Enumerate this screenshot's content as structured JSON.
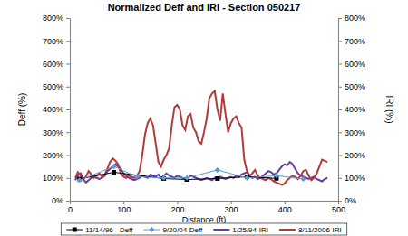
{
  "chart_data": {
    "type": "line",
    "title": "Normalized Deff and IRI - Section 050217",
    "x_label": "Distance (ft)",
    "y_label": "Deff (%)",
    "y2_label": "IRI (%)",
    "xlim": [
      0,
      500
    ],
    "xticks": [
      0,
      100,
      200,
      300,
      400,
      500
    ],
    "ylim": [
      0,
      800
    ],
    "yticks": [
      {
        "value": 0,
        "label": "0%"
      },
      {
        "value": 100,
        "label": "100%"
      },
      {
        "value": 200,
        "label": "200%"
      },
      {
        "value": 300,
        "label": "300%"
      },
      {
        "value": 400,
        "label": "400%"
      },
      {
        "value": 500,
        "label": "500%"
      },
      {
        "value": 600,
        "label": "600%"
      },
      {
        "value": 700,
        "label": "700%"
      },
      {
        "value": 800,
        "label": "800%"
      }
    ],
    "y2lim": [
      0,
      800
    ],
    "y2ticks": [
      {
        "value": 0,
        "label": "0%"
      },
      {
        "value": 100,
        "label": "100%"
      },
      {
        "value": 200,
        "label": "200%"
      },
      {
        "value": 300,
        "label": "300%"
      },
      {
        "value": 400,
        "label": "400%"
      },
      {
        "value": 500,
        "label": "500%"
      },
      {
        "value": 600,
        "label": "600%"
      },
      {
        "value": 700,
        "label": "700%"
      },
      {
        "value": 800,
        "label": "800%"
      }
    ],
    "grid": false,
    "legend": "bottom",
    "series": [
      {
        "name": "11/14/96 - Deff",
        "color": "#000000",
        "marker": "square",
        "line_style": "solid",
        "axis": "y",
        "x": [
          18,
          82,
          175,
          218,
          275,
          330,
          385
        ],
        "values": [
          95,
          125,
          97,
          93,
          97,
          105,
          98
        ]
      },
      {
        "name": "9/20/04-Deff",
        "color": "#5b9bd5",
        "marker": "diamond",
        "line_style": "solid",
        "axis": "y",
        "x": [
          18,
          82,
          125,
          175,
          218,
          275,
          330,
          385,
          435
        ],
        "values": [
          90,
          150,
          105,
          100,
          100,
          135,
          100,
          110,
          95
        ]
      },
      {
        "name": "1/25/94-IRI",
        "color": "#6a3aa0",
        "marker": "none",
        "line_style": "solid",
        "axis": "y2",
        "x": [
          10,
          15,
          20,
          25,
          30,
          35,
          40,
          45,
          50,
          55,
          60,
          65,
          70,
          75,
          80,
          85,
          90,
          95,
          100,
          105,
          110,
          115,
          120,
          125,
          130,
          135,
          140,
          145,
          150,
          155,
          160,
          165,
          170,
          175,
          180,
          185,
          190,
          195,
          200,
          205,
          210,
          215,
          220,
          225,
          230,
          235,
          240,
          245,
          250,
          255,
          260,
          265,
          270,
          275,
          280,
          285,
          290,
          295,
          300,
          305,
          310,
          315,
          320,
          325,
          330,
          335,
          340,
          345,
          350,
          355,
          360,
          365,
          370,
          375,
          380,
          385,
          390,
          395,
          400,
          405,
          410,
          415,
          420,
          425,
          430,
          435,
          440,
          445,
          450,
          455,
          460,
          465,
          470,
          475,
          480
        ],
        "values": [
          90,
          110,
          120,
          95,
          80,
          90,
          100,
          105,
          100,
          95,
          100,
          110,
          130,
          140,
          150,
          160,
          150,
          140,
          120,
          110,
          100,
          95,
          90,
          95,
          100,
          110,
          105,
          100,
          115,
          110,
          105,
          115,
          100,
          110,
          120,
          110,
          105,
          100,
          110,
          105,
          100,
          95,
          100,
          110,
          105,
          100,
          95,
          90,
          95,
          100,
          95,
          90,
          100,
          95,
          105,
          100,
          95,
          100,
          105,
          100,
          110,
          105,
          115,
          120,
          125,
          110,
          100,
          105,
          95,
          100,
          110,
          120,
          130,
          125,
          115,
          120,
          135,
          150,
          160,
          155,
          170,
          160,
          140,
          120,
          110,
          105,
          100,
          95,
          100,
          105,
          95,
          90,
          85,
          95,
          100
        ]
      },
      {
        "name": "8/11/2006-IRI",
        "color": "#b03a3a",
        "marker": "none",
        "line_style": "solid",
        "axis": "y2",
        "x": [
          10,
          15,
          20,
          25,
          30,
          35,
          40,
          45,
          50,
          55,
          60,
          65,
          70,
          75,
          80,
          85,
          90,
          95,
          100,
          105,
          110,
          115,
          120,
          125,
          130,
          135,
          140,
          145,
          150,
          155,
          160,
          165,
          170,
          175,
          180,
          185,
          190,
          195,
          200,
          205,
          210,
          215,
          220,
          225,
          230,
          235,
          240,
          245,
          250,
          255,
          260,
          265,
          270,
          275,
          280,
          285,
          290,
          295,
          300,
          305,
          310,
          315,
          320,
          325,
          330,
          335,
          340,
          345,
          350,
          355,
          360,
          365,
          370,
          375,
          380,
          385,
          390,
          395,
          400,
          405,
          410,
          415,
          420,
          425,
          430,
          435,
          440,
          445,
          450,
          455,
          460,
          465,
          470,
          475,
          480
        ],
        "values": [
          100,
          125,
          110,
          95,
          105,
          130,
          115,
          100,
          110,
          120,
          105,
          115,
          140,
          170,
          185,
          175,
          160,
          120,
          105,
          100,
          110,
          105,
          100,
          110,
          130,
          200,
          290,
          340,
          360,
          330,
          250,
          170,
          150,
          180,
          200,
          230,
          330,
          410,
          420,
          400,
          330,
          310,
          370,
          380,
          320,
          300,
          260,
          250,
          300,
          360,
          450,
          470,
          480,
          400,
          350,
          470,
          380,
          300,
          340,
          360,
          370,
          340,
          320,
          180,
          130,
          110,
          120,
          135,
          110,
          100,
          95,
          90,
          100,
          95,
          85,
          80,
          75,
          70,
          75,
          90,
          100,
          110,
          105,
          95,
          110,
          130,
          135,
          110,
          90,
          100,
          120,
          150,
          180,
          175,
          170
        ]
      }
    ]
  }
}
